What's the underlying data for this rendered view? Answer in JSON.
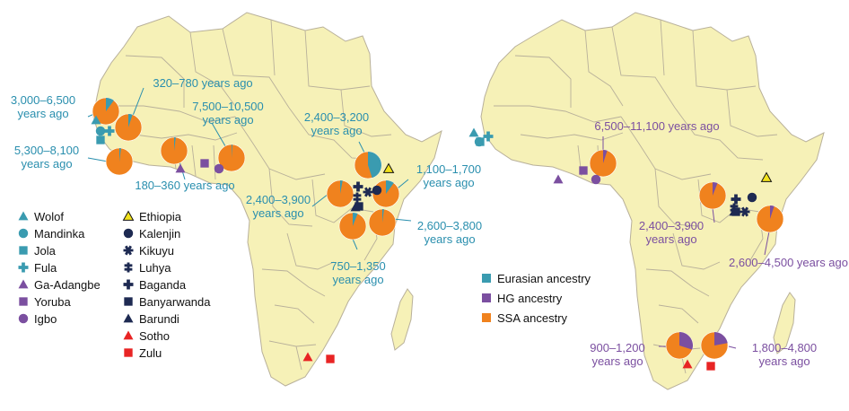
{
  "colors": {
    "land": "#f6f1b7",
    "border": "#b8b09a",
    "orange": "#f0821e",
    "teal": "#3a9bb0",
    "purple": "#7b4fa0",
    "navy": "#1e2a52",
    "red": "#e82424",
    "yellow": "#f2e21c",
    "ann_left": "#2a8fae",
    "ann_right": "#7b4fa0"
  },
  "population_legend": [
    {
      "label": "Wolof",
      "shape": "triangle",
      "color": "#3a9bb0"
    },
    {
      "label": "Mandinka",
      "shape": "circle",
      "color": "#3a9bb0"
    },
    {
      "label": "Jola",
      "shape": "square",
      "color": "#3a9bb0"
    },
    {
      "label": "Fula",
      "shape": "cross",
      "color": "#3a9bb0"
    },
    {
      "label": "Ga-Adangbe",
      "shape": "triangle",
      "color": "#7b4fa0"
    },
    {
      "label": "Yoruba",
      "shape": "square",
      "color": "#7b4fa0"
    },
    {
      "label": "Igbo",
      "shape": "circle",
      "color": "#7b4fa0"
    },
    {
      "label": "Ethiopia",
      "shape": "triangle",
      "color": "#f2e21c"
    },
    {
      "label": "Kalenjin",
      "shape": "circle",
      "color": "#1e2a52"
    },
    {
      "label": "Kikuyu",
      "shape": "star",
      "color": "#1e2a52"
    },
    {
      "label": "Luhya",
      "shape": "dcross",
      "color": "#1e2a52"
    },
    {
      "label": "Baganda",
      "shape": "cross",
      "color": "#1e2a52"
    },
    {
      "label": "Banyarwanda",
      "shape": "square",
      "color": "#1e2a52"
    },
    {
      "label": "Barundi",
      "shape": "triangle",
      "color": "#1e2a52"
    },
    {
      "label": "Sotho",
      "shape": "triangle",
      "color": "#e82424"
    },
    {
      "label": "Zulu",
      "shape": "square",
      "color": "#e82424"
    }
  ],
  "ancestry_legend": [
    {
      "label": "Eurasian ancestry",
      "color": "#3a9bb0"
    },
    {
      "label": "HG ancestry",
      "color": "#7b4fa0"
    },
    {
      "label": "SSA ancestry",
      "color": "#f0821e"
    }
  ],
  "left_map": {
    "annotations": [
      {
        "lines": [
          "3,000–6,500",
          "years ago"
        ]
      },
      {
        "lines": [
          "320–780 years ago"
        ]
      },
      {
        "lines": [
          "7,500–10,500",
          "years ago"
        ]
      },
      {
        "lines": [
          "5,300–8,100",
          "years ago"
        ]
      },
      {
        "lines": [
          "180–360 years ago"
        ]
      },
      {
        "lines": [
          "2,400–3,200",
          "years ago"
        ]
      },
      {
        "lines": [
          "1,100–1,700",
          "years ago"
        ]
      },
      {
        "lines": [
          "2,400–3,900",
          "years ago"
        ]
      },
      {
        "lines": [
          "2,600–3,800",
          "years ago"
        ]
      },
      {
        "lines": [
          "750–1,350",
          "years ago"
        ]
      }
    ],
    "pies": [
      {
        "population": "Wolof",
        "eurasian": 0.1,
        "hg": 0.0
      },
      {
        "population": "Mandinka",
        "eurasian": 0.05,
        "hg": 0.0
      },
      {
        "population": "Jola",
        "eurasian": 0.02,
        "hg": 0.0
      },
      {
        "population": "Ga-Adangbe",
        "eurasian": 0.02,
        "hg": 0.0
      },
      {
        "population": "Igbo",
        "eurasian": 0.01,
        "hg": 0.0
      },
      {
        "population": "Ethiopia",
        "eurasian": 0.45,
        "hg": 0.0
      },
      {
        "population": "Baganda",
        "eurasian": 0.03,
        "hg": 0.0
      },
      {
        "population": "Kalenjin",
        "eurasian": 0.1,
        "hg": 0.0
      },
      {
        "population": "Kikuyu",
        "eurasian": 0.06,
        "hg": 0.0
      },
      {
        "population": "Luhya",
        "eurasian": 0.02,
        "hg": 0.0
      }
    ]
  },
  "right_map": {
    "annotations": [
      {
        "lines": [
          "6,500–11,100 years ago"
        ]
      },
      {
        "lines": [
          "2,400–3,900",
          "years ago"
        ]
      },
      {
        "lines": [
          "2,600–4,500 years ago"
        ]
      },
      {
        "lines": [
          "900–1,200",
          "years ago"
        ]
      },
      {
        "lines": [
          "1,800–4,800",
          "years ago"
        ]
      }
    ],
    "pies": [
      {
        "population": "Yoruba",
        "eurasian": 0.0,
        "hg": 0.05
      },
      {
        "population": "Baganda",
        "eurasian": 0.0,
        "hg": 0.06
      },
      {
        "population": "Kikuyu",
        "eurasian": 0.0,
        "hg": 0.05
      },
      {
        "population": "Sotho",
        "eurasian": 0.0,
        "hg": 0.3
      },
      {
        "population": "Zulu",
        "eurasian": 0.0,
        "hg": 0.22
      }
    ]
  }
}
